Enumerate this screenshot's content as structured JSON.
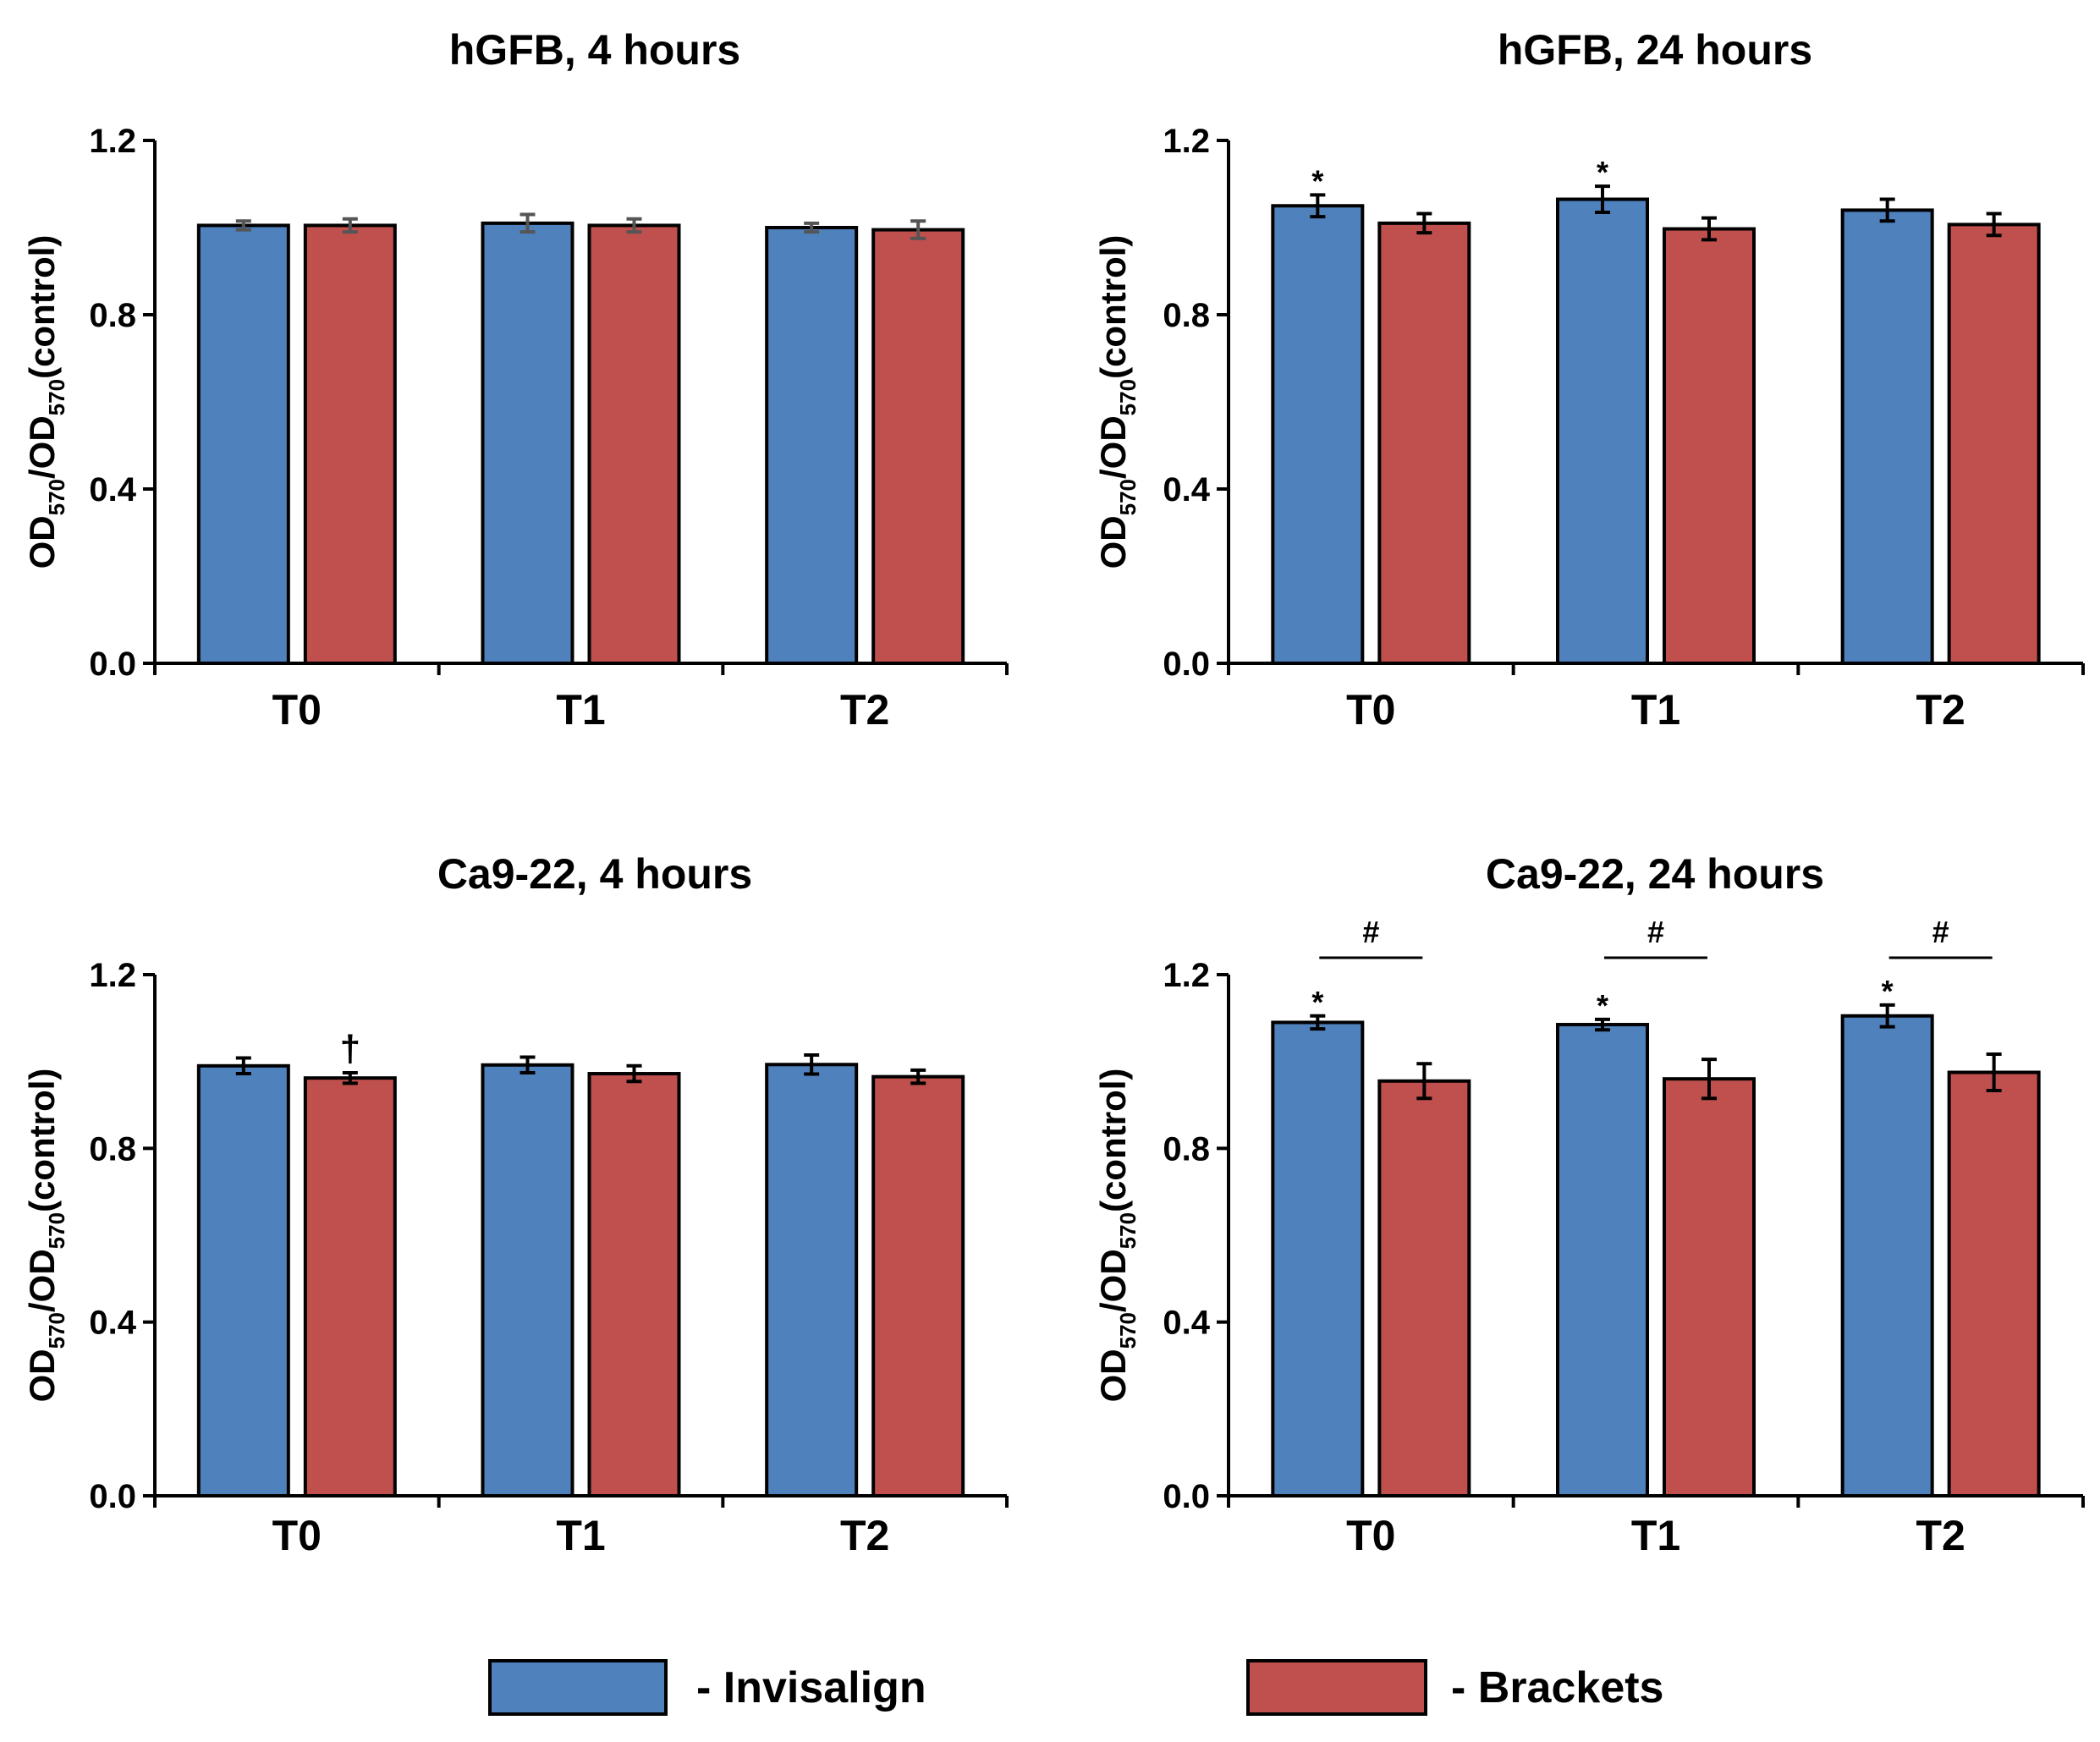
{
  "chart_data": [
    {
      "type": "bar",
      "title": "hGFB, 4 hours",
      "categories": [
        "T0",
        "T1",
        "T2"
      ],
      "series": [
        {
          "name": "Invisalign",
          "values": [
            1.005,
            1.01,
            1.0
          ],
          "errors": [
            0.01,
            0.02,
            0.01
          ]
        },
        {
          "name": "Brackets",
          "values": [
            1.005,
            1.005,
            0.995
          ],
          "errors": [
            0.015,
            0.015,
            0.02
          ]
        }
      ],
      "ylabel": {
        "main1": "OD",
        "sub1": "570",
        "mid": "/OD",
        "sub2": "570",
        "end": "(control)"
      },
      "ylim": [
        0,
        1.2
      ],
      "yticks": [
        "0.0",
        "0.4",
        "0.8",
        "1.2"
      ],
      "markers": [],
      "brackets": []
    },
    {
      "type": "bar",
      "title": "hGFB, 24 hours",
      "categories": [
        "T0",
        "T1",
        "T2"
      ],
      "series": [
        {
          "name": "Invisalign",
          "values": [
            1.05,
            1.065,
            1.04
          ],
          "errors": [
            0.025,
            0.03,
            0.025
          ]
        },
        {
          "name": "Brackets",
          "values": [
            1.01,
            0.997,
            1.007
          ],
          "errors": [
            0.022,
            0.025,
            0.025
          ]
        }
      ],
      "ylabel": {
        "main1": "OD",
        "sub1": "570",
        "mid": "/OD",
        "sub2": "570",
        "end": "(control)"
      },
      "ylim": [
        0,
        1.2
      ],
      "yticks": [
        "0.0",
        "0.4",
        "0.8",
        "1.2"
      ],
      "markers": [
        {
          "category": 0,
          "series": 0,
          "symbol": "*"
        },
        {
          "category": 1,
          "series": 0,
          "symbol": "*"
        }
      ],
      "brackets": []
    },
    {
      "type": "bar",
      "title": "Ca9-22, 4 hours",
      "categories": [
        "T0",
        "T1",
        "T2"
      ],
      "series": [
        {
          "name": "Invisalign",
          "values": [
            0.99,
            0.992,
            0.993
          ],
          "errors": [
            0.018,
            0.018,
            0.022
          ]
        },
        {
          "name": "Brackets",
          "values": [
            0.962,
            0.972,
            0.965
          ],
          "errors": [
            0.012,
            0.018,
            0.015
          ]
        }
      ],
      "ylabel": {
        "main1": "OD",
        "sub1": "570",
        "mid": "/OD",
        "sub2": "570",
        "end": "(control)"
      },
      "ylim": [
        0,
        1.2
      ],
      "yticks": [
        "0.0",
        "0.4",
        "0.8",
        "1.2"
      ],
      "markers": [
        {
          "category": 0,
          "series": 1,
          "symbol": "†"
        }
      ],
      "brackets": []
    },
    {
      "type": "bar",
      "title": "Ca9-22, 24 hours",
      "categories": [
        "T0",
        "T1",
        "T2"
      ],
      "series": [
        {
          "name": "Invisalign",
          "values": [
            1.09,
            1.085,
            1.105
          ],
          "errors": [
            0.015,
            0.012,
            0.025
          ]
        },
        {
          "name": "Brackets",
          "values": [
            0.955,
            0.96,
            0.975
          ],
          "errors": [
            0.04,
            0.045,
            0.042
          ]
        }
      ],
      "ylabel": {
        "main1": "OD",
        "sub1": "570",
        "mid": "/OD",
        "sub2": "570",
        "end": "(control)"
      },
      "ylim": [
        0,
        1.2
      ],
      "yticks": [
        "0.0",
        "0.4",
        "0.8",
        "1.2"
      ],
      "markers": [
        {
          "category": 0,
          "series": 0,
          "symbol": "*"
        },
        {
          "category": 1,
          "series": 0,
          "symbol": "*"
        },
        {
          "category": 2,
          "series": 0,
          "symbol": "*"
        }
      ],
      "brackets": [
        {
          "category": 0,
          "symbol": "#"
        },
        {
          "category": 1,
          "symbol": "#"
        },
        {
          "category": 2,
          "symbol": "#"
        }
      ]
    }
  ],
  "legend": [
    {
      "label": "- Invisalign",
      "color": "#4f81bd"
    },
    {
      "label": "- Brackets",
      "color": "#c0504d"
    }
  ],
  "colors": {
    "Invisalign": "#4f81bd",
    "Brackets": "#c0504d",
    "error_bar_panel1": "#555555",
    "axis": "#000000"
  }
}
